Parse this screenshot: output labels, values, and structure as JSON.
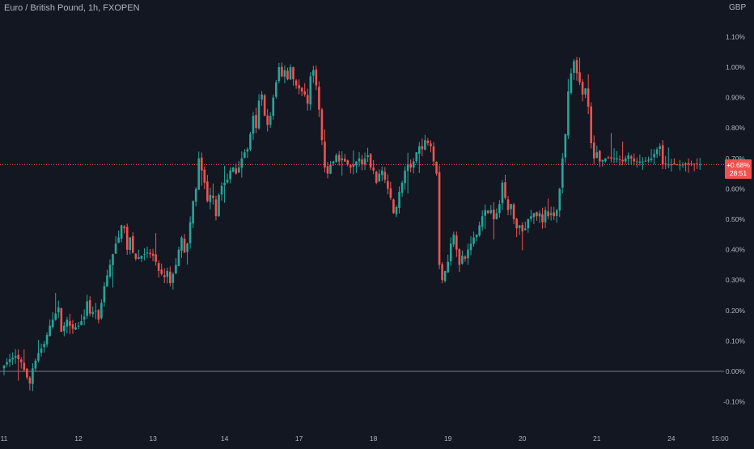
{
  "header": {
    "title": "Euro / British Pound, 1h, FXOPEN",
    "currency": "GBP"
  },
  "price_label": {
    "change": "+0.68%",
    "countdown": "28:51"
  },
  "colors": {
    "background": "#131722",
    "up": "#26a69a",
    "down": "#ef5350",
    "text": "#b2b5be",
    "zero_line": "#787b86",
    "current_line": "#ef5350"
  },
  "chart_data": {
    "type": "candlestick",
    "title": "Euro / British Pound, 1h, FXOPEN",
    "ylabel": "GBP",
    "y_unit": "percent change",
    "ylim": [
      -0.13,
      1.12
    ],
    "y_ticks": [
      "1.10%",
      "1.00%",
      "0.90%",
      "0.80%",
      "0.70%",
      "0.60%",
      "0.50%",
      "0.40%",
      "0.30%",
      "0.20%",
      "0.10%",
      "0.00%",
      "-0.10%"
    ],
    "y_tick_values": [
      1.1,
      1.0,
      0.9,
      0.8,
      0.7,
      0.6,
      0.5,
      0.4,
      0.3,
      0.2,
      0.1,
      0.0,
      -0.1
    ],
    "x_ticks": [
      "11",
      "12",
      "13",
      "14",
      "17",
      "18",
      "19",
      "20",
      "21",
      "24",
      "15:00"
    ],
    "x_tick_index": [
      0,
      26,
      52,
      77,
      103,
      129,
      155,
      181,
      207,
      233,
      250
    ],
    "x_last_index": 243,
    "current_value": 0.68,
    "close_path": [
      [
        0,
        0.02
      ],
      [
        2,
        0.04
      ],
      [
        4,
        0.05
      ],
      [
        6,
        0.03
      ],
      [
        8,
        -0.02
      ],
      [
        9,
        -0.04
      ],
      [
        10,
        0.01
      ],
      [
        12,
        0.06
      ],
      [
        14,
        0.09
      ],
      [
        16,
        0.15
      ],
      [
        18,
        0.19
      ],
      [
        19,
        0.21
      ],
      [
        20,
        0.13
      ],
      [
        21,
        0.15
      ],
      [
        22,
        0.17
      ],
      [
        23,
        0.15
      ],
      [
        24,
        0.14
      ],
      [
        26,
        0.15
      ],
      [
        28,
        0.18
      ],
      [
        29,
        0.23
      ],
      [
        30,
        0.19
      ],
      [
        32,
        0.2
      ],
      [
        33,
        0.17
      ],
      [
        35,
        0.28
      ],
      [
        37,
        0.35
      ],
      [
        39,
        0.42
      ],
      [
        40,
        0.44
      ],
      [
        41,
        0.48
      ],
      [
        42,
        0.47
      ],
      [
        43,
        0.4
      ],
      [
        44,
        0.44
      ],
      [
        45,
        0.39
      ],
      [
        46,
        0.37
      ],
      [
        48,
        0.38
      ],
      [
        50,
        0.39
      ],
      [
        52,
        0.38
      ],
      [
        53,
        0.36
      ],
      [
        54,
        0.33
      ],
      [
        56,
        0.31
      ],
      [
        57,
        0.33
      ],
      [
        58,
        0.29
      ],
      [
        59,
        0.32
      ],
      [
        60,
        0.35
      ],
      [
        61,
        0.4
      ],
      [
        62,
        0.44
      ],
      [
        63,
        0.39
      ],
      [
        64,
        0.42
      ],
      [
        66,
        0.56
      ],
      [
        67,
        0.6
      ],
      [
        68,
        0.7
      ],
      [
        69,
        0.66
      ],
      [
        70,
        0.62
      ],
      [
        71,
        0.56
      ],
      [
        72,
        0.58
      ],
      [
        73,
        0.57
      ],
      [
        74,
        0.51
      ],
      [
        75,
        0.58
      ],
      [
        76,
        0.61
      ],
      [
        77,
        0.62
      ],
      [
        78,
        0.63
      ],
      [
        79,
        0.66
      ],
      [
        80,
        0.67
      ],
      [
        81,
        0.65
      ],
      [
        82,
        0.67
      ],
      [
        83,
        0.7
      ],
      [
        84,
        0.72
      ],
      [
        85,
        0.73
      ],
      [
        86,
        0.78
      ],
      [
        87,
        0.84
      ],
      [
        88,
        0.8
      ],
      [
        89,
        0.89
      ],
      [
        90,
        0.91
      ],
      [
        91,
        0.84
      ],
      [
        92,
        0.81
      ],
      [
        93,
        0.84
      ],
      [
        94,
        0.9
      ],
      [
        95,
        0.95
      ],
      [
        96,
        1.0
      ],
      [
        97,
        0.97
      ],
      [
        98,
        0.99
      ],
      [
        99,
        0.96
      ],
      [
        100,
        1.0
      ],
      [
        101,
        0.96
      ],
      [
        102,
        0.94
      ],
      [
        103,
        0.93
      ],
      [
        104,
        0.92
      ],
      [
        105,
        0.91
      ],
      [
        106,
        0.88
      ],
      [
        107,
        0.97
      ],
      [
        108,
        0.99
      ],
      [
        109,
        0.94
      ],
      [
        110,
        0.86
      ],
      [
        111,
        0.76
      ],
      [
        112,
        0.67
      ],
      [
        113,
        0.65
      ],
      [
        114,
        0.68
      ],
      [
        115,
        0.69
      ],
      [
        116,
        0.71
      ],
      [
        117,
        0.69
      ],
      [
        118,
        0.7
      ],
      [
        119,
        0.69
      ],
      [
        120,
        0.68
      ],
      [
        121,
        0.67
      ],
      [
        122,
        0.68
      ],
      [
        123,
        0.69
      ],
      [
        124,
        0.7
      ],
      [
        125,
        0.68
      ],
      [
        126,
        0.7
      ],
      [
        127,
        0.71
      ],
      [
        128,
        0.67
      ],
      [
        129,
        0.66
      ],
      [
        130,
        0.62
      ],
      [
        131,
        0.65
      ],
      [
        132,
        0.66
      ],
      [
        133,
        0.63
      ],
      [
        134,
        0.6
      ],
      [
        135,
        0.57
      ],
      [
        136,
        0.52
      ],
      [
        137,
        0.54
      ],
      [
        138,
        0.59
      ],
      [
        139,
        0.62
      ],
      [
        140,
        0.66
      ],
      [
        141,
        0.68
      ],
      [
        142,
        0.67
      ],
      [
        143,
        0.69
      ],
      [
        144,
        0.72
      ],
      [
        145,
        0.74
      ],
      [
        146,
        0.73
      ],
      [
        147,
        0.76
      ],
      [
        148,
        0.75
      ],
      [
        149,
        0.74
      ],
      [
        150,
        0.69
      ],
      [
        151,
        0.65
      ],
      [
        152,
        0.35
      ],
      [
        153,
        0.3
      ],
      [
        154,
        0.33
      ],
      [
        155,
        0.36
      ],
      [
        156,
        0.42
      ],
      [
        157,
        0.45
      ],
      [
        158,
        0.4
      ],
      [
        159,
        0.35
      ],
      [
        160,
        0.38
      ],
      [
        161,
        0.37
      ],
      [
        162,
        0.4
      ],
      [
        163,
        0.42
      ],
      [
        164,
        0.44
      ],
      [
        165,
        0.45
      ],
      [
        166,
        0.48
      ],
      [
        167,
        0.51
      ],
      [
        168,
        0.53
      ],
      [
        169,
        0.52
      ],
      [
        170,
        0.53
      ],
      [
        171,
        0.5
      ],
      [
        172,
        0.52
      ],
      [
        173,
        0.55
      ],
      [
        174,
        0.62
      ],
      [
        175,
        0.57
      ],
      [
        176,
        0.53
      ],
      [
        177,
        0.55
      ],
      [
        178,
        0.5
      ],
      [
        179,
        0.47
      ],
      [
        180,
        0.48
      ],
      [
        181,
        0.46
      ],
      [
        182,
        0.47
      ],
      [
        183,
        0.5
      ],
      [
        184,
        0.51
      ],
      [
        185,
        0.52
      ],
      [
        186,
        0.51
      ],
      [
        187,
        0.52
      ],
      [
        188,
        0.49
      ],
      [
        189,
        0.53
      ],
      [
        190,
        0.51
      ],
      [
        191,
        0.52
      ],
      [
        192,
        0.51
      ],
      [
        193,
        0.53
      ],
      [
        194,
        0.6
      ],
      [
        195,
        0.7
      ],
      [
        196,
        0.78
      ],
      [
        197,
        0.92
      ],
      [
        198,
        0.98
      ],
      [
        199,
        1.02
      ],
      [
        200,
        0.98
      ],
      [
        201,
        0.95
      ],
      [
        202,
        0.91
      ],
      [
        203,
        0.93
      ],
      [
        204,
        0.87
      ],
      [
        205,
        0.75
      ],
      [
        206,
        0.7
      ],
      [
        207,
        0.72
      ],
      [
        208,
        0.69
      ],
      [
        210,
        0.7
      ],
      [
        212,
        0.7
      ],
      [
        214,
        0.7
      ],
      [
        216,
        0.69
      ],
      [
        218,
        0.71
      ],
      [
        220,
        0.69
      ],
      [
        222,
        0.69
      ],
      [
        224,
        0.69
      ],
      [
        226,
        0.7
      ],
      [
        228,
        0.73
      ],
      [
        229,
        0.74
      ],
      [
        230,
        0.68
      ]
    ]
  }
}
